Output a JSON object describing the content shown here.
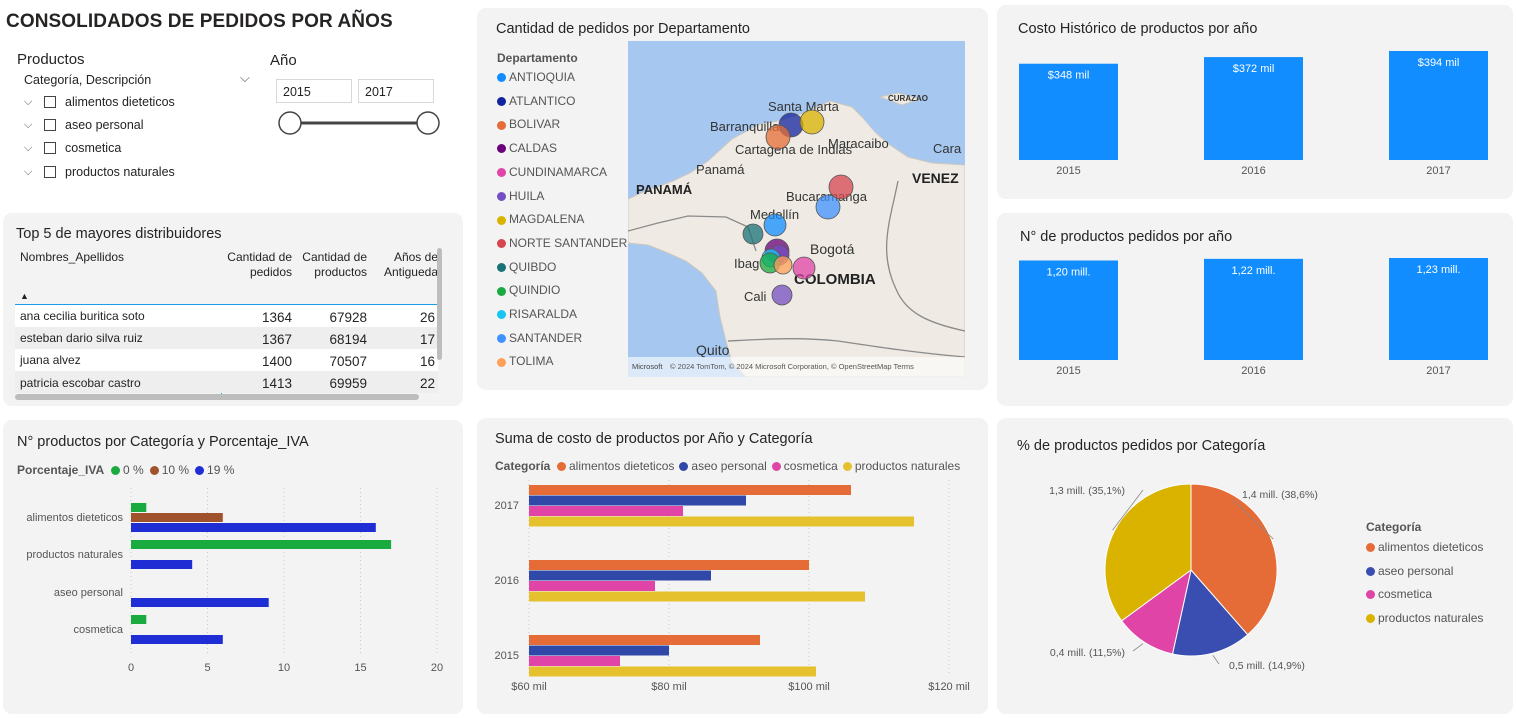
{
  "page_title": "CONSOLIDADOS DE PEDIDOS POR AÑOS",
  "colors": {
    "blue": "#118dff",
    "orange": "#e66c37",
    "navy": "#3049a8",
    "pink": "#e044a7",
    "gold": "#d9b300",
    "green": "#1aab40",
    "brown": "#a0522d",
    "royal": "#1f2dd4",
    "card": "#f3f3f3"
  },
  "slicer_productos": {
    "title": "Productos",
    "header": "Categoría, Descripción",
    "items": [
      "alimentos dieteticos",
      "aseo personal",
      "cosmetica",
      "productos naturales"
    ]
  },
  "slicer_anio": {
    "title": "Año",
    "from": "2015",
    "to": "2017"
  },
  "top5": {
    "title": "Top 5 de mayores distribuidores",
    "columns": [
      "Nombres_Apellidos",
      "Cantidad de pedidos",
      "Cantidad de productos",
      "Años de Antigueda"
    ],
    "rows": [
      {
        "name": "ana cecilia buritica soto",
        "pedidos": "1364",
        "productos": "67928",
        "anios": "26"
      },
      {
        "name": "esteban dario silva ruiz",
        "pedidos": "1367",
        "productos": "68194",
        "anios": "17"
      },
      {
        "name": "juana alvez",
        "pedidos": "1400",
        "productos": "70507",
        "anios": "16"
      },
      {
        "name": "patricia escobar castro",
        "pedidos": "1413",
        "productos": "69959",
        "anios": "22"
      }
    ]
  },
  "map": {
    "title": "Cantidad de pedidos por Departamento",
    "legend_title": "Departamento",
    "departments": [
      {
        "name": "ANTIOQUIA",
        "color": "#118dff"
      },
      {
        "name": "ATLANTICO",
        "color": "#12239e"
      },
      {
        "name": "BOLIVAR",
        "color": "#e66c37"
      },
      {
        "name": "CALDAS",
        "color": "#6b007b"
      },
      {
        "name": "CUNDINAMARCA",
        "color": "#e044a7"
      },
      {
        "name": "HUILA",
        "color": "#744ec2"
      },
      {
        "name": "MAGDALENA",
        "color": "#d9b300"
      },
      {
        "name": "NORTE SANTANDER",
        "color": "#d64550"
      },
      {
        "name": "QUIBDO",
        "color": "#197278"
      },
      {
        "name": "QUINDIO",
        "color": "#1aab40"
      },
      {
        "name": "RISARALDA",
        "color": "#15c6f4"
      },
      {
        "name": "SANTANDER",
        "color": "#4092ff"
      },
      {
        "name": "TOLIMA",
        "color": "#ffa058"
      }
    ],
    "places": [
      "Santa Marta",
      "CURAZAO",
      "Barranquilla",
      "Maracaibo",
      "Cartagena de Indias",
      "Cara",
      "Panamá",
      "PANAMÁ",
      "VENEZ",
      "Bucaramanga",
      "Medellín",
      "Bogotá",
      "Ibag",
      "COLOMBIA",
      "Cali",
      "Quito"
    ],
    "attribution": "© 2024 TomTom, © 2024 Microsoft Corporation, © OpenStreetMap  Terms",
    "logo_text": "Microsoft"
  },
  "costo_historico": {
    "title": "Costo Histórico de productos por año",
    "chart_data": {
      "type": "bar",
      "categories": [
        "2015",
        "2016",
        "2017"
      ],
      "values": [
        348,
        372,
        394
      ],
      "labels": [
        "$348 mil",
        "$372 mil",
        "$394 mil"
      ]
    }
  },
  "n_productos_anio": {
    "title": "N° de productos pedidos por año",
    "chart_data": {
      "type": "bar",
      "categories": [
        "2015",
        "2016",
        "2017"
      ],
      "values": [
        1.2,
        1.22,
        1.23
      ],
      "labels": [
        "1,20 mill.",
        "1,22 mill.",
        "1,23 mill."
      ]
    }
  },
  "iva_chart": {
    "title": "N° productos por Categoría y Porcentaje_IVA",
    "legend_title": "Porcentaje_IVA",
    "chart_data": {
      "type": "bar",
      "orientation": "horizontal",
      "categories": [
        "alimentos dieteticos",
        "productos naturales",
        "aseo personal",
        "cosmetica"
      ],
      "series": [
        {
          "name": "0 %",
          "color": "#1aab40",
          "values": [
            1,
            17,
            0,
            1
          ]
        },
        {
          "name": "10 %",
          "color": "#a0522d",
          "values": [
            6,
            0,
            0,
            0
          ]
        },
        {
          "name": "19 %",
          "color": "#1f2dd4",
          "values": [
            16,
            4,
            9,
            6
          ]
        }
      ],
      "xlim": [
        0,
        20
      ],
      "xticks": [
        "0",
        "5",
        "10",
        "15",
        "20"
      ]
    }
  },
  "costo_cat": {
    "title": "Suma de costo de productos por Año y Categoría",
    "legend_title": "Categoría",
    "chart_data": {
      "type": "bar",
      "orientation": "horizontal",
      "categories": [
        "2017",
        "2016",
        "2015"
      ],
      "series": [
        {
          "name": "alimentos dieteticos",
          "color": "#e66c37",
          "values": [
            106,
            100,
            93
          ]
        },
        {
          "name": "aseo personal",
          "color": "#3049a8",
          "values": [
            91,
            86,
            80
          ]
        },
        {
          "name": "cosmetica",
          "color": "#e044a7",
          "values": [
            82,
            78,
            73
          ]
        },
        {
          "name": "productos naturales",
          "color": "#e6c12e",
          "values": [
            115,
            108,
            101
          ]
        }
      ],
      "xlim": [
        60,
        120
      ],
      "xticks": [
        "$60 mil",
        "$80 mil",
        "$100 mil",
        "$120 mil"
      ]
    }
  },
  "pie": {
    "title": "% de productos pedidos por Categoría",
    "legend_title": "Categoría",
    "chart_data": {
      "type": "pie",
      "slices": [
        {
          "name": "alimentos dieteticos",
          "color": "#e66c37",
          "value": 38.6,
          "label": "1,4 mill. (38,6%)"
        },
        {
          "name": "aseo personal",
          "color": "#3a4db0",
          "value": 14.9,
          "label": "0,5 mill. (14,9%)"
        },
        {
          "name": "cosmetica",
          "color": "#e044a7",
          "value": 11.5,
          "label": "0,4 mill. (11,5%)"
        },
        {
          "name": "productos naturales",
          "color": "#d9b300",
          "value": 35.1,
          "label": "1,3 mill. (35,1%)"
        }
      ]
    }
  }
}
